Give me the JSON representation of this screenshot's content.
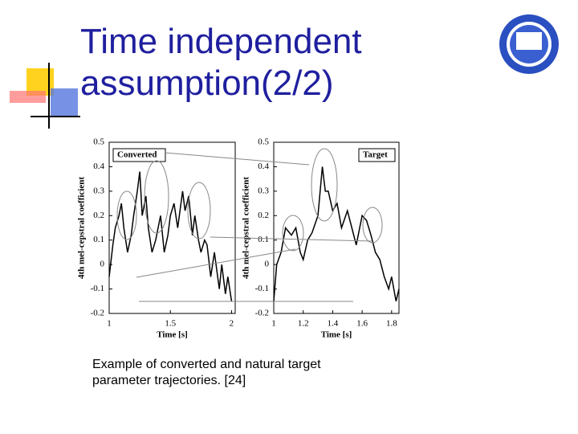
{
  "slide": {
    "title": "Time independent assumption(2/2)",
    "caption": "Example of converted and natural target parameter trajectories. [24]"
  },
  "chart_data": [
    {
      "type": "line",
      "annotation": "Converted",
      "xlabel": "Time [s]",
      "ylabel": "4th mel-cepstral coefficient",
      "xlim": [
        1,
        2.03
      ],
      "ylim": [
        -0.2,
        0.5
      ],
      "xticks": [
        1,
        1.5,
        2
      ],
      "yticks": [
        0.5,
        0.4,
        0.3,
        0.2,
        0.1,
        0,
        -0.1,
        -0.2
      ],
      "x": [
        1.0,
        1.03,
        1.05,
        1.08,
        1.1,
        1.12,
        1.15,
        1.18,
        1.2,
        1.23,
        1.25,
        1.27,
        1.3,
        1.32,
        1.35,
        1.38,
        1.42,
        1.45,
        1.48,
        1.5,
        1.53,
        1.56,
        1.6,
        1.62,
        1.65,
        1.68,
        1.7,
        1.73,
        1.75,
        1.78,
        1.8,
        1.83,
        1.86,
        1.9,
        1.92,
        1.95,
        1.97,
        2.0
      ],
      "series": [
        {
          "color": "#000000",
          "values": [
            -0.05,
            0.08,
            0.15,
            0.2,
            0.25,
            0.15,
            0.05,
            0.12,
            0.2,
            0.3,
            0.38,
            0.2,
            0.28,
            0.15,
            0.05,
            0.1,
            0.2,
            0.05,
            0.12,
            0.2,
            0.25,
            0.15,
            0.3,
            0.22,
            0.28,
            0.12,
            0.2,
            0.1,
            0.05,
            0.1,
            0.08,
            -0.05,
            0.05,
            -0.1,
            0.0,
            -0.12,
            -0.05,
            -0.15
          ]
        }
      ]
    },
    {
      "type": "line",
      "annotation": "Target",
      "xlabel": "Time [s]",
      "ylabel": "4th mel-cepstral coefficient",
      "xlim": [
        1,
        1.85
      ],
      "ylim": [
        -0.2,
        0.5
      ],
      "xticks": [
        1,
        1.2,
        1.4,
        1.6,
        1.8
      ],
      "yticks": [
        0.5,
        0.4,
        0.3,
        0.2,
        0.1,
        0,
        -0.1,
        -0.2
      ],
      "x": [
        1.0,
        1.02,
        1.05,
        1.08,
        1.12,
        1.15,
        1.18,
        1.2,
        1.23,
        1.26,
        1.3,
        1.33,
        1.35,
        1.37,
        1.4,
        1.43,
        1.46,
        1.5,
        1.53,
        1.56,
        1.6,
        1.63,
        1.66,
        1.69,
        1.72,
        1.75,
        1.78,
        1.8,
        1.83,
        1.85
      ],
      "series": [
        {
          "color": "#000000",
          "values": [
            -0.15,
            0.0,
            0.05,
            0.15,
            0.12,
            0.15,
            0.05,
            0.02,
            0.1,
            0.13,
            0.2,
            0.4,
            0.3,
            0.3,
            0.22,
            0.25,
            0.15,
            0.22,
            0.15,
            0.08,
            0.2,
            0.18,
            0.12,
            0.05,
            0.02,
            -0.05,
            -0.1,
            -0.05,
            -0.15,
            -0.1
          ]
        }
      ]
    }
  ]
}
